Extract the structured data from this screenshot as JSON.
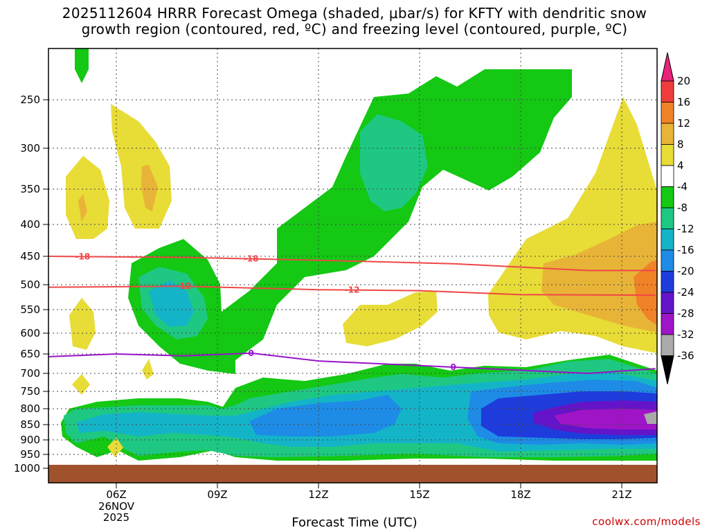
{
  "title_line1": "2025112604 HRRR Forecast Omega (shaded, μbar/s) for KFTY with dendritic snow",
  "title_line2": "growth region (contoured, red, ºC) and freezing level (contoured, purple, ºC)",
  "credit": "coolwx.com/models",
  "chart_data": {
    "type": "heatmap",
    "title": "2025112604 HRRR Forecast Omega (shaded, μbar/s) for KFTY with dendritic snow growth region (contoured, red, ºC) and freezing level (contoured, purple, ºC)",
    "xlabel": "Forecast Time (UTC)",
    "ylabel": "",
    "x_ticks": [
      {
        "hour": 6,
        "label": "06Z",
        "date_line1": "26NOV",
        "date_line2": "2025"
      },
      {
        "hour": 9,
        "label": "09Z"
      },
      {
        "hour": 12,
        "label": "12Z"
      },
      {
        "hour": 15,
        "label": "15Z"
      },
      {
        "hour": 18,
        "label": "18Z"
      },
      {
        "hour": 21,
        "label": "21Z"
      }
    ],
    "x_range_hours": [
      4,
      22
    ],
    "y_pressure_ticks": [
      250,
      300,
      350,
      400,
      450,
      500,
      550,
      600,
      650,
      700,
      750,
      800,
      850,
      900,
      950,
      1000
    ],
    "y_range_mb": [
      200,
      1000
    ],
    "grid": true,
    "colorbar": {
      "labels": [
        "20",
        "16",
        "12",
        "8",
        "4",
        "-4",
        "-8",
        "-12",
        "-16",
        "-20",
        "-24",
        "-28",
        "-32",
        "-36"
      ],
      "colors": [
        "#e8237a",
        "#f03c3c",
        "#f08228",
        "#e8b437",
        "#e8dc37",
        "#ffffff",
        "#14c814",
        "#1ec882",
        "#14b4c8",
        "#1e8ce6",
        "#1e3cdc",
        "#6414c8",
        "#a014c8",
        "#aaaaaa",
        "#000000"
      ]
    },
    "contours": [
      {
        "name": "dendritic -18C",
        "color": "#f04646",
        "label": "-18",
        "pressure_mb_at_hours": [
          [
            4,
            450
          ],
          [
            8,
            452
          ],
          [
            12,
            457
          ],
          [
            16,
            463
          ],
          [
            20,
            475
          ],
          [
            22,
            475
          ]
        ]
      },
      {
        "name": "dendritic -12C",
        "color": "#f04646",
        "label": "-12",
        "pressure_mb_at_hours": [
          [
            4,
            505
          ],
          [
            8,
            503
          ],
          [
            12,
            510
          ],
          [
            15,
            512
          ],
          [
            18,
            520
          ],
          [
            22,
            521
          ]
        ]
      },
      {
        "name": "freezing level 0C",
        "color": "#9614c8",
        "label": "0",
        "pressure_mb_at_hours": [
          [
            4,
            657
          ],
          [
            6,
            650
          ],
          [
            8,
            655
          ],
          [
            10,
            648
          ],
          [
            12,
            668
          ],
          [
            16,
            684
          ],
          [
            20,
            700
          ],
          [
            22,
            688
          ]
        ]
      }
    ],
    "ground_level_mb": 975
  }
}
